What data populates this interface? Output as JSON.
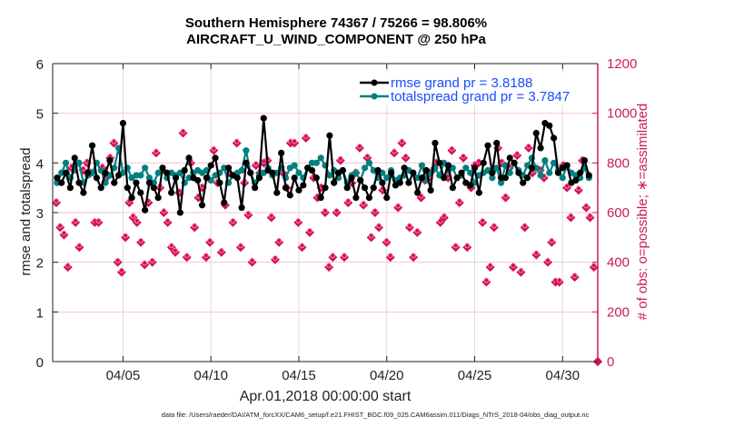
{
  "chart_data": {
    "type": "line",
    "title": [
      "Southern Hemisphere 74367 / 75266 = 98.806%",
      "AIRCRAFT_U_WIND_COMPONENT @ 250 hPa"
    ],
    "xlabel": "Apr.01,2018 00:00:00 start",
    "ylabel": "rmse and totalspread",
    "ylabel_right": "# of obs: o=possible; ∗=assimilated",
    "footer": "data file: /Users/raeder/DAI/ATM_forcXX/CAM6_setup/f.e21.FHIST_BGC.f09_025.CAM6assim.011/Diags_NTrS_2018-04/obs_diag_output.nc",
    "xlim": [
      0,
      31
    ],
    "ylim": [
      0,
      6
    ],
    "ylim_right": [
      0,
      1200
    ],
    "x_unit": "days since Apr.01,2018 00:00:00",
    "xtick_positions": [
      4,
      9,
      14,
      19,
      24,
      29
    ],
    "xtick_labels": [
      "04/05",
      "04/10",
      "04/15",
      "04/20",
      "04/25",
      "04/30"
    ],
    "yticks": [
      "0",
      "1",
      "2",
      "3",
      "4",
      "5",
      "6"
    ],
    "yticks_right": [
      "0",
      "200",
      "400",
      "600",
      "800",
      "1000",
      "1200"
    ],
    "grid": true,
    "legend_position": "top-right",
    "legend": [
      {
        "label": "rmse grand pr = 3.8188",
        "color": "#000000"
      },
      {
        "label": "totalspread grand pr = 3.7847",
        "color": "#008080"
      }
    ],
    "colors": {
      "rmse": "#000000",
      "totalspread": "#008080",
      "obs": "#d6105a",
      "axis_right": "#cc1a5c"
    },
    "x_step_days": 0.25,
    "series": [
      {
        "name": "rmse",
        "values": [
          3.7,
          3.6,
          3.8,
          3.5,
          4.1,
          3.6,
          3.4,
          3.8,
          4.35,
          3.7,
          3.5,
          3.8,
          4.05,
          3.6,
          3.75,
          4.8,
          3.5,
          3.3,
          3.6,
          3.4,
          3.05,
          3.6,
          3.5,
          3.3,
          3.9,
          3.8,
          3.4,
          3.7,
          3.0,
          3.85,
          4.1,
          3.7,
          3.65,
          3.15,
          3.7,
          3.95,
          4.1,
          3.6,
          3.2,
          3.9,
          3.75,
          3.7,
          3.1,
          4.0,
          3.8,
          3.5,
          3.7,
          4.9,
          3.85,
          3.8,
          3.4,
          4.2,
          3.5,
          3.35,
          3.7,
          3.45,
          3.55,
          3.9,
          3.85,
          3.7,
          3.3,
          3.5,
          4.55,
          3.6,
          3.8,
          3.85,
          3.5,
          3.7,
          3.3,
          3.65,
          3.5,
          3.3,
          3.5,
          3.85,
          3.6,
          3.3,
          3.8,
          3.55,
          3.6,
          3.9,
          3.6,
          3.8,
          3.4,
          3.7,
          3.85,
          3.45,
          4.4,
          4.0,
          3.7,
          3.95,
          3.5,
          3.7,
          3.8,
          3.6,
          3.55,
          3.9,
          3.4,
          4.0,
          4.35,
          3.8,
          4.4,
          3.7,
          3.7,
          4.1,
          4.0,
          3.8,
          3.6,
          3.7,
          3.9,
          4.6,
          4.3,
          4.8,
          4.75,
          4.5,
          3.8,
          3.9,
          3.95,
          3.6,
          3.65,
          3.8,
          4.05,
          3.75
        ],
        "note": "values estimated from pixel positions; 6-hourly"
      },
      {
        "name": "totalspread",
        "values": [
          3.6,
          3.8,
          4.0,
          3.7,
          3.85,
          4.0,
          3.6,
          3.75,
          3.8,
          4.0,
          3.85,
          3.6,
          3.75,
          3.9,
          4.3,
          3.8,
          3.9,
          3.7,
          3.75,
          3.75,
          3.9,
          3.7,
          3.6,
          3.8,
          3.85,
          3.7,
          3.8,
          3.75,
          3.8,
          3.6,
          3.7,
          3.8,
          3.85,
          3.8,
          3.85,
          3.65,
          3.75,
          3.8,
          3.9,
          3.6,
          3.75,
          3.8,
          3.85,
          4.25,
          3.8,
          3.6,
          3.75,
          3.8,
          3.9,
          3.75,
          3.8,
          3.9,
          3.7,
          3.9,
          3.95,
          3.8,
          3.7,
          3.9,
          4.0,
          4.0,
          4.1,
          3.95,
          3.75,
          3.85,
          3.7,
          3.85,
          3.6,
          3.75,
          3.8,
          3.65,
          3.9,
          4.0,
          3.85,
          3.7,
          3.8,
          3.7,
          3.85,
          3.65,
          3.7,
          3.75,
          3.85,
          3.8,
          3.7,
          3.95,
          3.65,
          3.8,
          3.9,
          3.75,
          4.0,
          3.85,
          3.9,
          3.7,
          3.75,
          3.9,
          3.8,
          3.6,
          3.75,
          3.8,
          3.85,
          3.7,
          3.9,
          3.6,
          3.95,
          3.8,
          4.0,
          3.85,
          3.75,
          3.95,
          4.1,
          3.9,
          3.75,
          4.05,
          3.8,
          4.0,
          3.85,
          3.7,
          3.95,
          3.8,
          3.75,
          3.7,
          3.9,
          3.7
        ]
      },
      {
        "name": "obs_possible",
        "axis": "right",
        "values": [
          640,
          540,
          510,
          380,
          780,
          560,
          460,
          770,
          800,
          760,
          560,
          560,
          780,
          740,
          820,
          880,
          400,
          360,
          500,
          640,
          580,
          560,
          480,
          390,
          640,
          400,
          840,
          700,
          600,
          560,
          460,
          440,
          680,
          920,
          420,
          800,
          540,
          660,
          700,
          420,
          480,
          850,
          720,
          440,
          630,
          760,
          560,
          880,
          460,
          720,
          590,
          400,
          790,
          760,
          800,
          810,
          580,
          410,
          480,
          760,
          700,
          880,
          880,
          560,
          460,
          900,
          520,
          740,
          660,
          700,
          600,
          380,
          420,
          600,
          810,
          420,
          640,
          720,
          760,
          860,
          630,
          820,
          500,
          600,
          540,
          690,
          480,
          420,
          840,
          620,
          880,
          820,
          540,
          420,
          520,
          660,
          730,
          740,
          770,
          800,
          560,
          580,
          740,
          850,
          460,
          640,
          820,
          460,
          700,
          790,
          800,
          560,
          320,
          380,
          540,
          860,
          800,
          660,
          780,
          380,
          830,
          360,
          540,
          860,
          760,
          430,
          770,
          740,
          400,
          480,
          320,
          320,
          790,
          700,
          580,
          340,
          690,
          810,
          620,
          580,
          380,
          0
        ],
        "note": "observation counts per 6-hourly bin, estimated; only a subset plotted"
      }
    ]
  }
}
